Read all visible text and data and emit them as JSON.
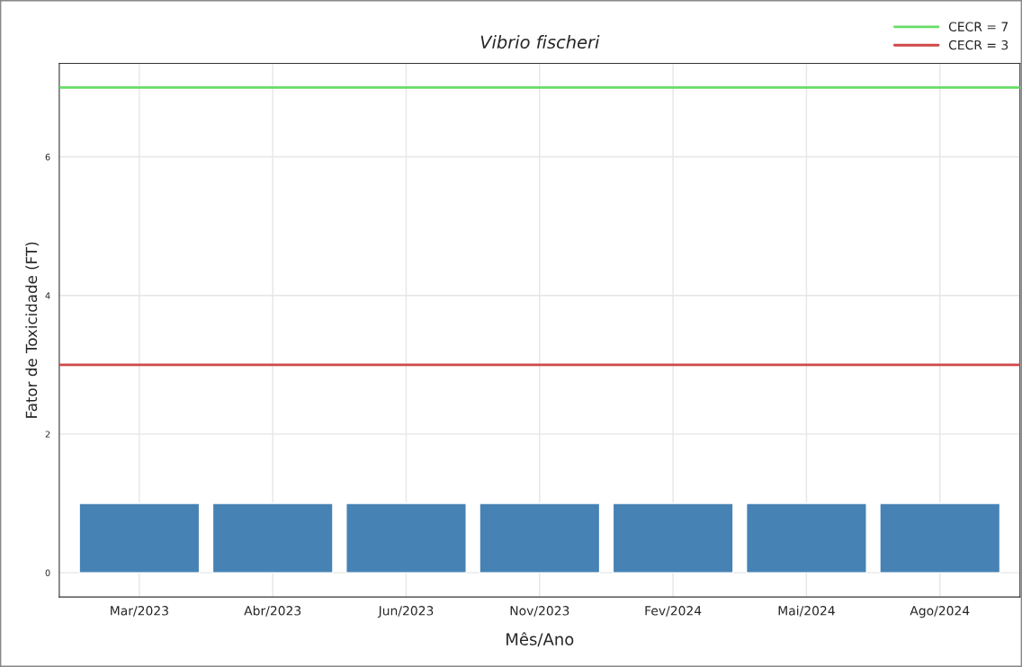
{
  "chart_data": {
    "type": "bar",
    "title": "Vibrio fischeri",
    "xlabel": "Mês/Ano",
    "ylabel": "Fator de Toxicidade (FT)",
    "categories": [
      "Mar/2023",
      "Abr/2023",
      "Jun/2023",
      "Nov/2023",
      "Fev/2024",
      "Mai/2024",
      "Ago/2024"
    ],
    "values": [
      1,
      1,
      1,
      1,
      1,
      1,
      1
    ],
    "color": "#4682b4",
    "ylim": [
      -0.35,
      7.35
    ],
    "yticks": [
      0,
      2,
      4,
      6
    ],
    "grid": true,
    "legend": "top right",
    "ref_lines": [
      {
        "axis": "y",
        "value": 7,
        "label": "CECR = 7",
        "color": "#66dd66",
        "line_style": "solid"
      },
      {
        "axis": "y",
        "value": 3,
        "label": "CECR = 3",
        "color": "#d04848",
        "line_style": "solid"
      }
    ]
  }
}
